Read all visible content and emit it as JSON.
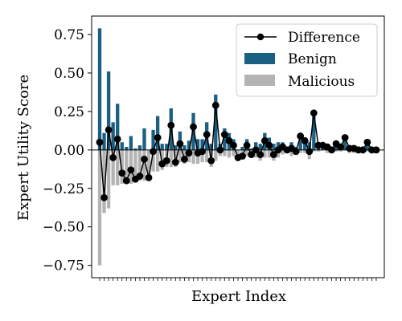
{
  "chart_data": {
    "type": "bar",
    "xlabel": "Expert Index",
    "ylabel": "Expert Utility Score",
    "ylim": [
      -0.83,
      0.87
    ],
    "yticks": [
      -0.75,
      -0.5,
      -0.25,
      0.0,
      0.25,
      0.5,
      0.75
    ],
    "ytick_labels": [
      "−0.75",
      "−0.50",
      "−0.25",
      "0.00",
      "0.25",
      "0.50",
      "0.75"
    ],
    "grid": false,
    "legend": {
      "placement": "top-right"
    },
    "colors": {
      "benign": "#1b5f83",
      "malicious": "#b3b3b3",
      "difference": "#000000",
      "zero_line": "#000000"
    },
    "series": [
      {
        "name": "Difference",
        "kind": "line",
        "values": [
          0.05,
          -0.31,
          0.13,
          -0.05,
          0.07,
          -0.15,
          -0.2,
          -0.13,
          -0.19,
          -0.17,
          -0.06,
          -0.18,
          -0.01,
          0.08,
          -0.09,
          -0.07,
          0.16,
          -0.08,
          0.04,
          -0.06,
          -0.02,
          0.15,
          -0.02,
          -0.01,
          0.1,
          -0.07,
          0.29,
          0.0,
          0.1,
          0.06,
          0.03,
          -0.05,
          -0.04,
          0.03,
          -0.03,
          0.0,
          -0.03,
          0.06,
          0.03,
          -0.03,
          0.0,
          0.02,
          0.0,
          0.01,
          -0.01,
          0.09,
          0.06,
          -0.01,
          0.24,
          0.03,
          0.03,
          0.02,
          0.0,
          0.04,
          0.02,
          0.08,
          0.01,
          0.01,
          0.0,
          0.0,
          0.05,
          0.0,
          0.0
        ]
      },
      {
        "name": "Benign",
        "kind": "bar",
        "values": [
          0.79,
          0.11,
          0.51,
          0.18,
          0.3,
          0.05,
          0.02,
          0.09,
          0.01,
          0.03,
          0.14,
          0.0,
          0.13,
          0.22,
          0.04,
          0.04,
          0.27,
          0.03,
          0.12,
          0.03,
          0.06,
          0.24,
          0.07,
          0.07,
          0.18,
          0.04,
          0.36,
          0.04,
          0.14,
          0.11,
          0.07,
          0.0,
          0.02,
          0.07,
          0.01,
          0.05,
          0.04,
          0.11,
          0.08,
          0.04,
          0.05,
          0.05,
          0.02,
          0.05,
          0.02,
          0.11,
          0.08,
          0.05,
          0.25,
          0.04,
          0.03,
          0.04,
          0.02,
          0.03,
          0.03,
          0.06,
          0.03,
          0.03,
          0.01,
          0.01,
          0.04,
          0.01,
          0.01
        ]
      },
      {
        "name": "Malicious",
        "kind": "bar",
        "values": [
          -0.75,
          -0.41,
          -0.38,
          -0.23,
          -0.23,
          -0.22,
          -0.22,
          -0.22,
          -0.2,
          -0.2,
          -0.2,
          -0.18,
          -0.14,
          -0.14,
          -0.13,
          -0.11,
          -0.11,
          -0.11,
          -0.08,
          -0.09,
          -0.08,
          -0.09,
          -0.09,
          -0.08,
          -0.08,
          -0.11,
          -0.07,
          -0.04,
          -0.04,
          -0.05,
          -0.04,
          -0.05,
          -0.06,
          -0.04,
          -0.04,
          -0.05,
          -0.07,
          -0.05,
          -0.05,
          -0.07,
          -0.05,
          -0.03,
          -0.02,
          -0.04,
          -0.03,
          -0.02,
          -0.02,
          -0.06,
          -0.01,
          -0.01,
          0.0,
          -0.02,
          -0.02,
          -0.01,
          -0.01,
          0.0,
          -0.02,
          -0.02,
          -0.01,
          -0.01,
          -0.01,
          -0.01,
          -0.01
        ]
      }
    ]
  }
}
